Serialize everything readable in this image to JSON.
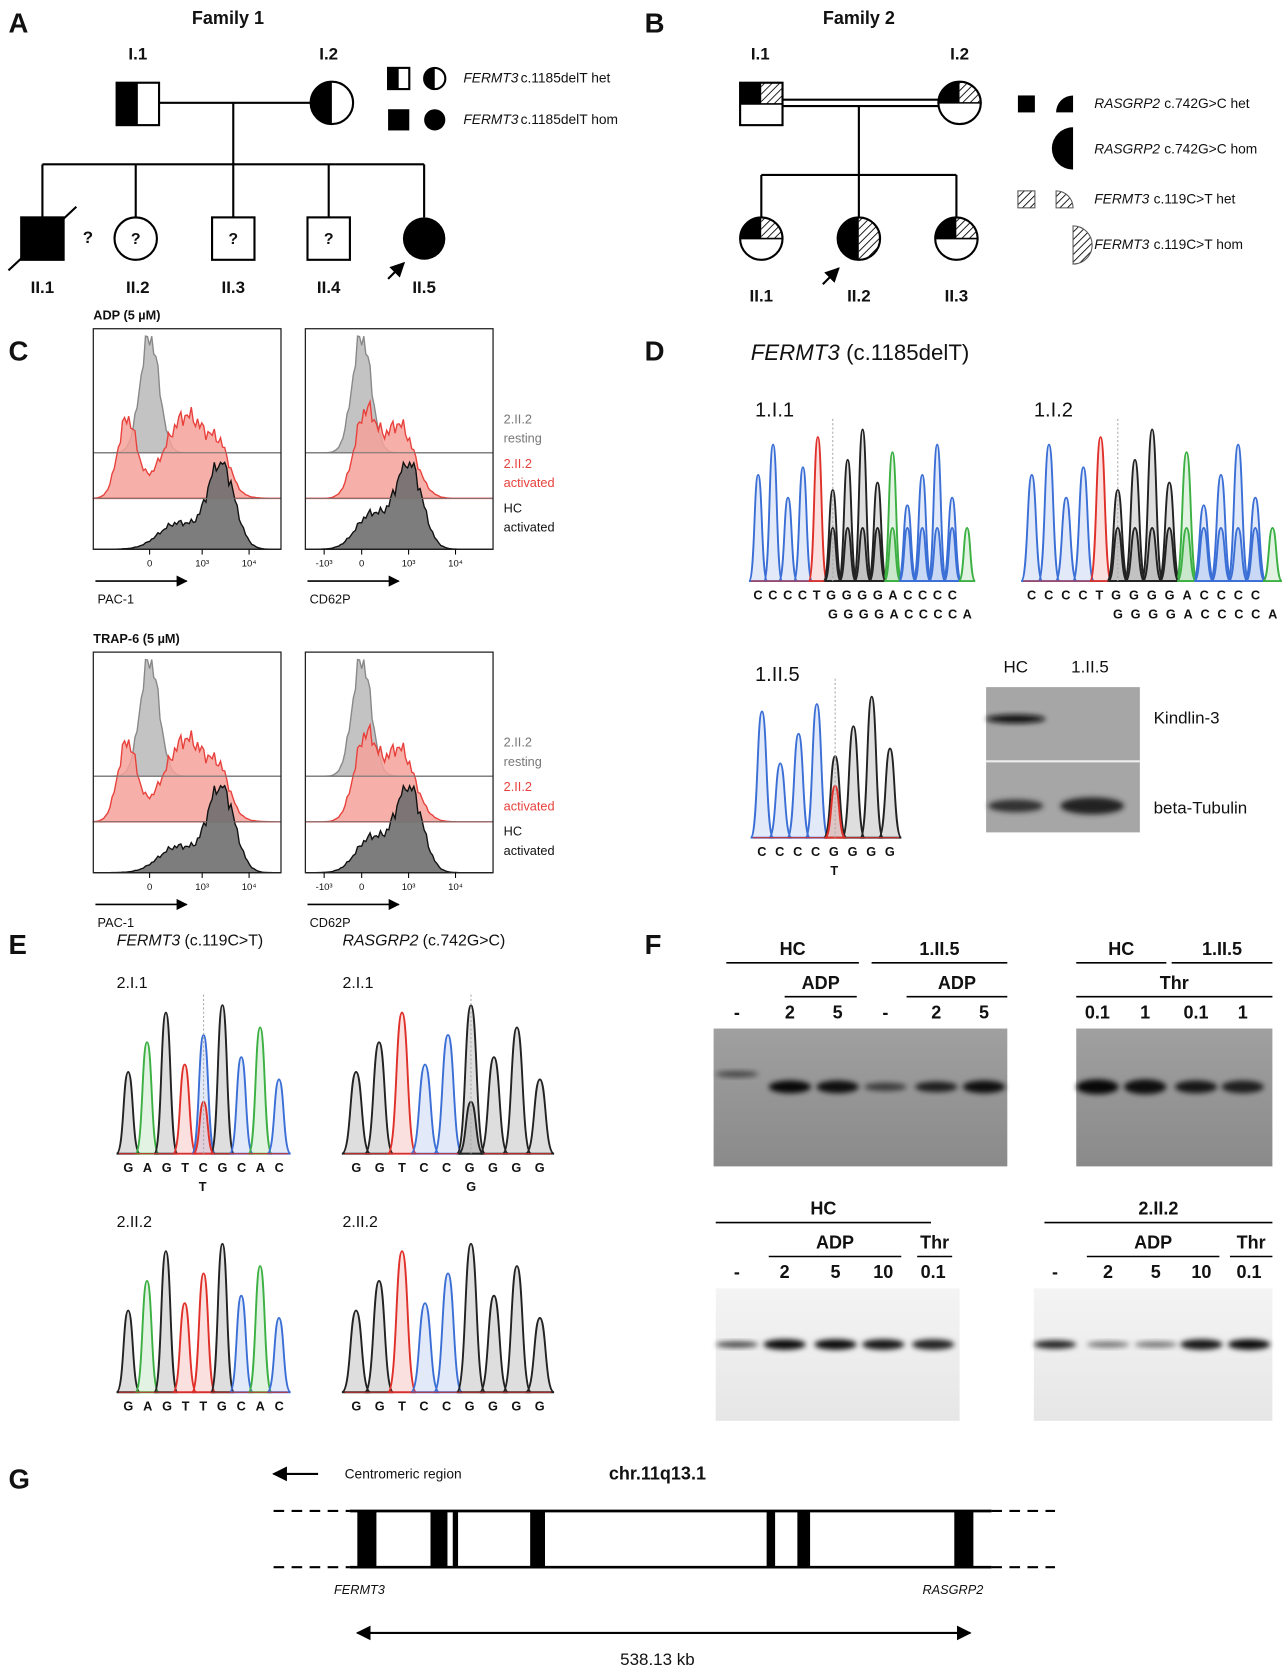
{
  "panels": {
    "A": {
      "letter": "A",
      "title": "Family 1",
      "individuals": [
        "I.1",
        "I.2",
        "II.1",
        "II.2",
        "II.3",
        "II.4",
        "II.5"
      ],
      "question_marks": [
        "?",
        "?",
        "?",
        "?"
      ],
      "legend": [
        {
          "gene": "FERMT3",
          "variant": "c.1185delT het"
        },
        {
          "gene": "FERMT3",
          "variant": "c.1185delT hom"
        }
      ]
    },
    "B": {
      "letter": "B",
      "title": "Family 2",
      "individuals": [
        "I.1",
        "I.2",
        "II.1",
        "II.2",
        "II.3"
      ],
      "legend": [
        {
          "gene": "RASGRP2",
          "variant": "c.742G>C het"
        },
        {
          "gene": "RASGRP2",
          "variant": "c.742G>C hom"
        },
        {
          "gene": "FERMT3",
          "variant": "c.119C>T het"
        },
        {
          "gene": "FERMT3",
          "variant": "c.119C>T hom"
        }
      ]
    },
    "C": {
      "letter": "C",
      "rows": [
        {
          "stimulus": "ADP (5 µM)",
          "legend": [
            {
              "sample": "2.II.2",
              "state": "resting"
            },
            {
              "sample": "2.II.2",
              "state": "activated"
            },
            {
              "sample": "HC",
              "state": "activated"
            }
          ],
          "plots": [
            {
              "axis_label": "PAC-1",
              "ticks": [
                "0",
                "10³",
                "10⁴"
              ]
            },
            {
              "axis_label": "CD62P",
              "ticks": [
                "-10³",
                "0",
                "10³",
                "10⁴"
              ]
            }
          ]
        },
        {
          "stimulus": "TRAP-6 (5 µM)",
          "legend": [
            {
              "sample": "2.II.2",
              "state": "resting"
            },
            {
              "sample": "2.II.2",
              "state": "activated"
            },
            {
              "sample": "HC",
              "state": "activated"
            }
          ],
          "plots": [
            {
              "axis_label": "PAC-1",
              "ticks": [
                "0",
                "10³",
                "10⁴"
              ]
            },
            {
              "axis_label": "CD62P",
              "ticks": [
                "-10³",
                "0",
                "10³",
                "10⁴"
              ]
            }
          ]
        }
      ]
    },
    "D": {
      "letter": "D",
      "gene": "FERMT3",
      "variant": "(c.1185delT)",
      "traces": [
        {
          "sample": "1.I.1",
          "sequence": "CCCCTGGGGACCCC",
          "second": "GGGGACCCCA"
        },
        {
          "sample": "1.I.2",
          "sequence": "CCCCTGGGGACCCC",
          "second": "GGGGACCCCA"
        },
        {
          "sample": "1.II.5",
          "sequence": "CCCCGGGG",
          "second": "T"
        }
      ],
      "blot": {
        "lanes": [
          "HC",
          "1.II.5"
        ],
        "proteins": [
          "Kindlin-3",
          "beta-Tubulin"
        ]
      }
    },
    "E": {
      "letter": "E",
      "genes": [
        {
          "gene": "FERMT3",
          "variant": "(c.119C>T)",
          "traces": [
            {
              "sample": "2.I.1",
              "sequence": "GAGTCGCAC",
              "second": "T"
            },
            {
              "sample": "2.II.2",
              "sequence": "GAGTTGCAC"
            }
          ]
        },
        {
          "gene": "RASGRP2",
          "variant": "(c.742G>C)",
          "traces": [
            {
              "sample": "2.I.1",
              "sequence": "GGTCCGGGG",
              "second": "G"
            },
            {
              "sample": "2.II.2",
              "sequence": "GGTCCGGGG"
            }
          ]
        }
      ]
    },
    "F": {
      "letter": "F",
      "blots": [
        {
          "groups": [
            "HC",
            "1.II.5"
          ],
          "treatments": [
            "ADP",
            "ADP"
          ],
          "lanes": [
            "-",
            "2",
            "5",
            "-",
            "2",
            "5"
          ]
        },
        {
          "groups": [
            "HC",
            "1.II.5"
          ],
          "treatments": [
            "Thr"
          ],
          "lanes": [
            "0.1",
            "1",
            "0.1",
            "1"
          ]
        },
        {
          "groups": [
            "HC"
          ],
          "treatments": [
            "ADP",
            "Thr"
          ],
          "lanes": [
            "-",
            "2",
            "5",
            "10",
            "0.1"
          ]
        },
        {
          "groups": [
            "2.II.2"
          ],
          "treatments": [
            "ADP",
            "Thr"
          ],
          "lanes": [
            "-",
            "2",
            "5",
            "10",
            "0.1"
          ]
        }
      ]
    },
    "G": {
      "letter": "G",
      "direction": "Centromeric region",
      "locus": "chr.11q13.1",
      "genes": [
        "FERMT3",
        "RASGRP2"
      ],
      "distance": "538.13 kb"
    }
  }
}
